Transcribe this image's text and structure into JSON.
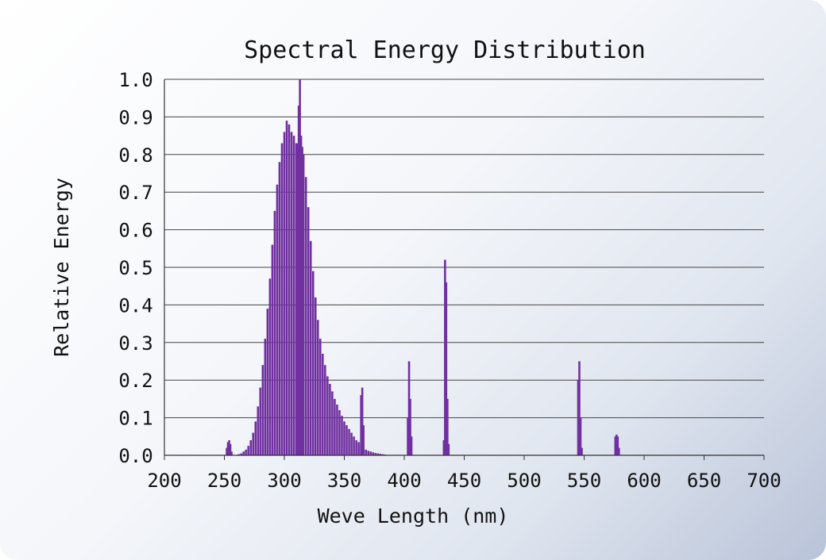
{
  "chart_data": {
    "type": "bar",
    "title": "Spectral Energy Distribution",
    "xlabel": "Weve Length (nm)",
    "ylabel": "Relative Energy",
    "xlim": [
      200,
      700
    ],
    "ylim": [
      0,
      1.0
    ],
    "x_ticks": [
      "200",
      "250",
      "300",
      "350",
      "400",
      "450",
      "500",
      "550",
      "600",
      "650",
      "700"
    ],
    "y_ticks": [
      "0.0",
      "0.1",
      "0.2",
      "0.3",
      "0.4",
      "0.5",
      "0.6",
      "0.7",
      "0.8",
      "0.9",
      "1.0"
    ],
    "grid": "horizontal",
    "legend": "none",
    "bar_color": "#7030a0",
    "series": [
      {
        "x": [
          252,
          253,
          254,
          255,
          256,
          262,
          264,
          266,
          268,
          270,
          272,
          274,
          276,
          278,
          280,
          282,
          284,
          286,
          288,
          290,
          292,
          294,
          296,
          298,
          300,
          302,
          304,
          306,
          308,
          310,
          311,
          312,
          313,
          314,
          315,
          316,
          318,
          320,
          322,
          324,
          326,
          328,
          330,
          332,
          334,
          336,
          338,
          340,
          342,
          344,
          346,
          348,
          350,
          352,
          354,
          356,
          358,
          360,
          362,
          364,
          366,
          368,
          370,
          372,
          374,
          376,
          378,
          380,
          382,
          384,
          364,
          365,
          366,
          403,
          404,
          405,
          406,
          433,
          434,
          435,
          436,
          437,
          545,
          546,
          547,
          548,
          576,
          577,
          578,
          579
        ],
        "values": [
          0.02,
          0.035,
          0.04,
          0.03,
          0.01,
          0.003,
          0.005,
          0.01,
          0.015,
          0.025,
          0.04,
          0.06,
          0.09,
          0.13,
          0.18,
          0.24,
          0.31,
          0.39,
          0.47,
          0.56,
          0.65,
          0.72,
          0.78,
          0.83,
          0.86,
          0.89,
          0.88,
          0.86,
          0.85,
          0.83,
          0.83,
          0.93,
          1.0,
          0.85,
          0.82,
          0.8,
          0.74,
          0.66,
          0.57,
          0.49,
          0.42,
          0.36,
          0.31,
          0.27,
          0.24,
          0.21,
          0.19,
          0.17,
          0.15,
          0.135,
          0.12,
          0.105,
          0.09,
          0.08,
          0.07,
          0.06,
          0.05,
          0.04,
          0.035,
          0.03,
          0.02,
          0.015,
          0.012,
          0.01,
          0.008,
          0.006,
          0.005,
          0.004,
          0.003,
          0.002,
          0.16,
          0.18,
          0.08,
          0.1,
          0.25,
          0.15,
          0.05,
          0.04,
          0.52,
          0.46,
          0.15,
          0.03,
          0.2,
          0.25,
          0.1,
          0.02,
          0.05,
          0.055,
          0.05,
          0.02
        ]
      }
    ]
  }
}
